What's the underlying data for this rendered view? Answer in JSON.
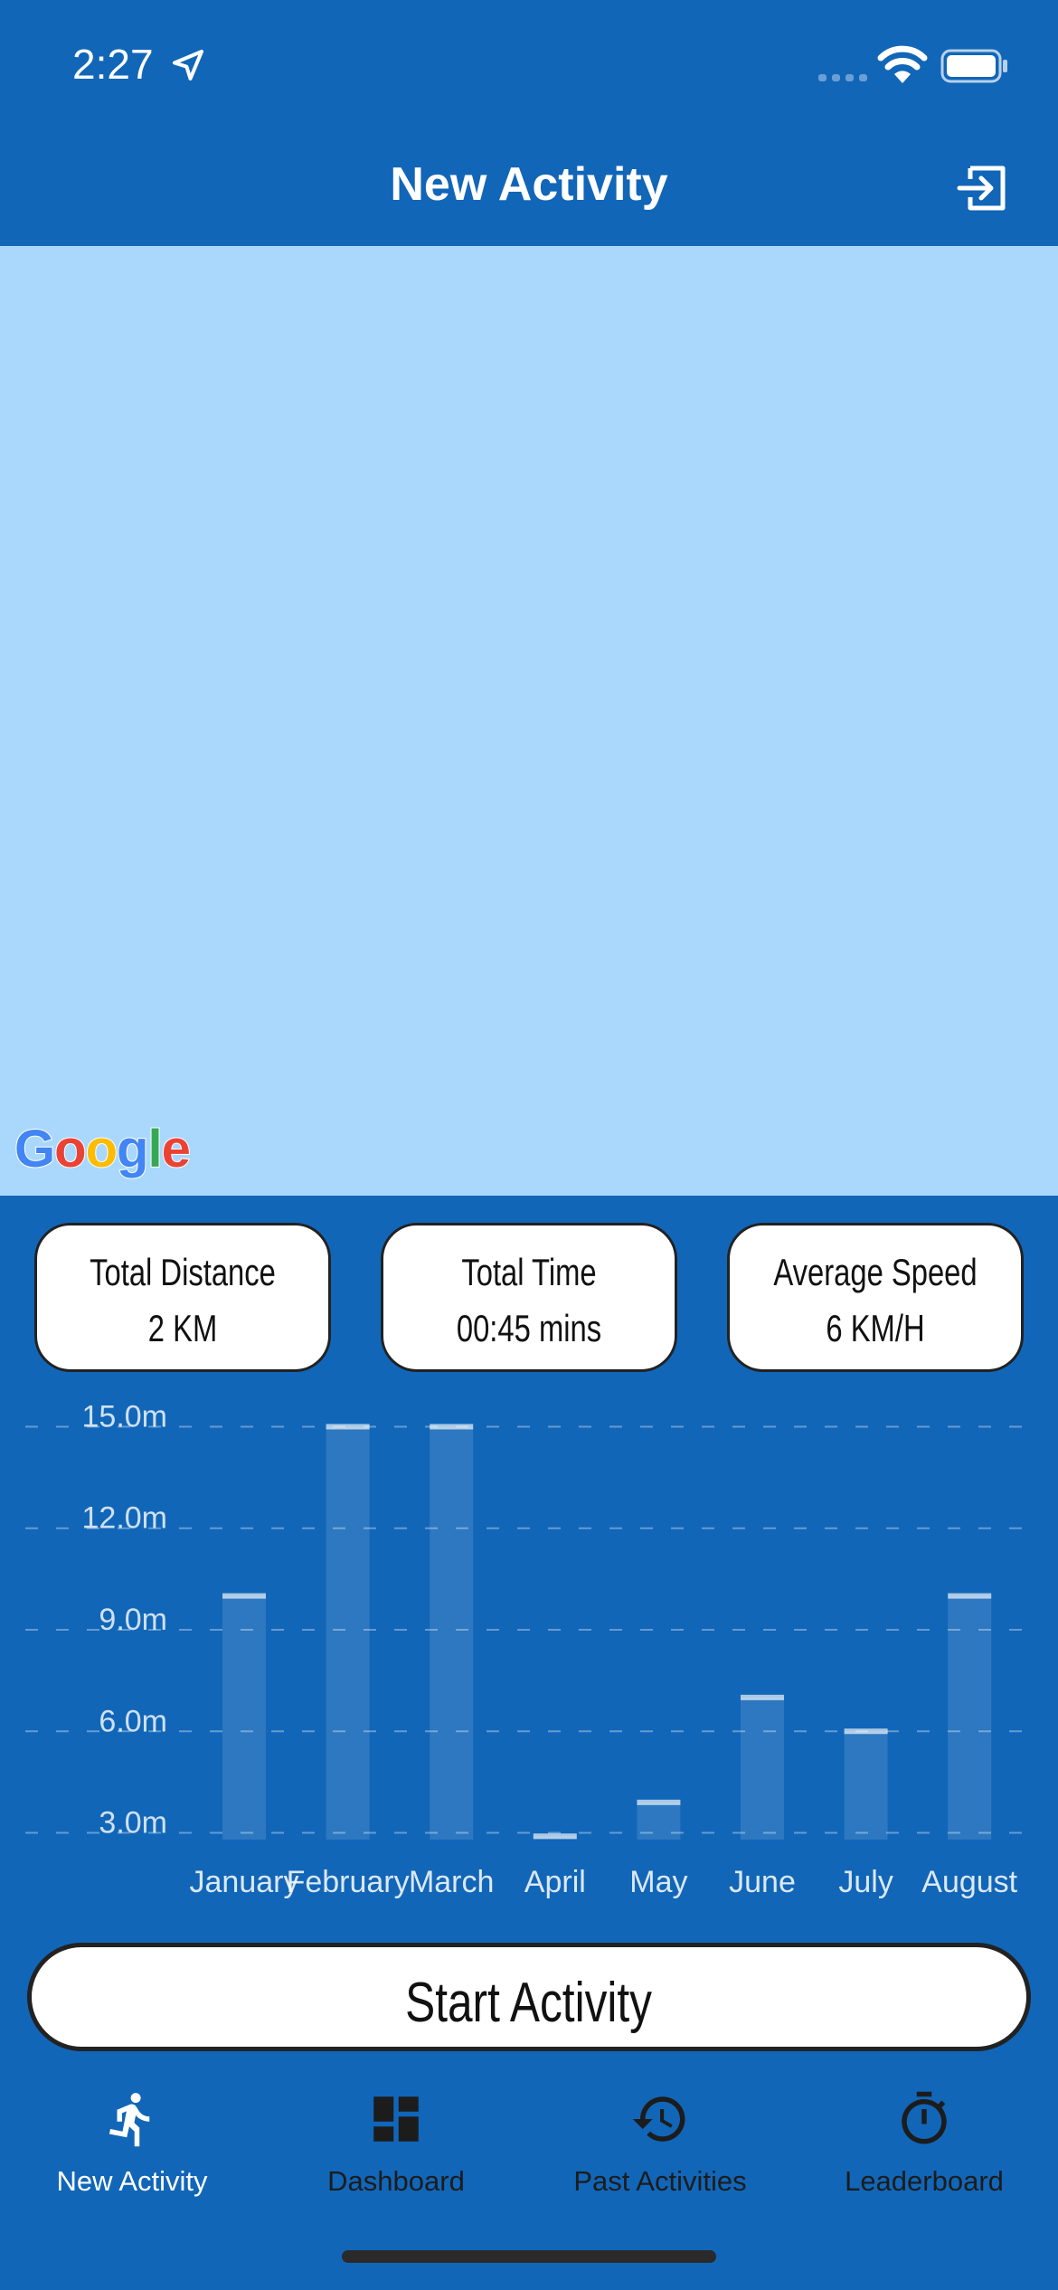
{
  "status_bar": {
    "time": "2:27"
  },
  "header": {
    "title": "New Activity"
  },
  "map": {
    "logo_text": "Google"
  },
  "stats": [
    {
      "label": "Total Distance",
      "value": "2 KM"
    },
    {
      "label": "Total Time",
      "value": "00:45 mins"
    },
    {
      "label": "Average Speed",
      "value": "6 KM/H"
    }
  ],
  "chart_data": {
    "type": "bar",
    "categories": [
      "January",
      "February",
      "March",
      "April",
      "May",
      "June",
      "July",
      "August"
    ],
    "values": [
      10.0,
      15.0,
      15.0,
      2.9,
      3.9,
      7.0,
      6.0,
      10.0
    ],
    "y_ticks": [
      "3.0m",
      "6.0m",
      "9.0m",
      "12.0m",
      "15.0m"
    ],
    "ylim": [
      2.8,
      15.2
    ],
    "grid": true,
    "bar_color": "#ffffff"
  },
  "start_button": {
    "label": "Start Activity"
  },
  "tabs": [
    {
      "label": "New Activity",
      "icon": "runner-icon",
      "active": true
    },
    {
      "label": "Dashboard",
      "icon": "dashboard-icon",
      "active": false
    },
    {
      "label": "Past Activities",
      "icon": "history-icon",
      "active": false
    },
    {
      "label": "Leaderboard",
      "icon": "stopwatch-icon",
      "active": false
    }
  ],
  "colors": {
    "primary": "#1166b8",
    "map": "#aad8fd",
    "active_tab": "#ffffff",
    "inactive_tab": "#1c1c1c"
  }
}
